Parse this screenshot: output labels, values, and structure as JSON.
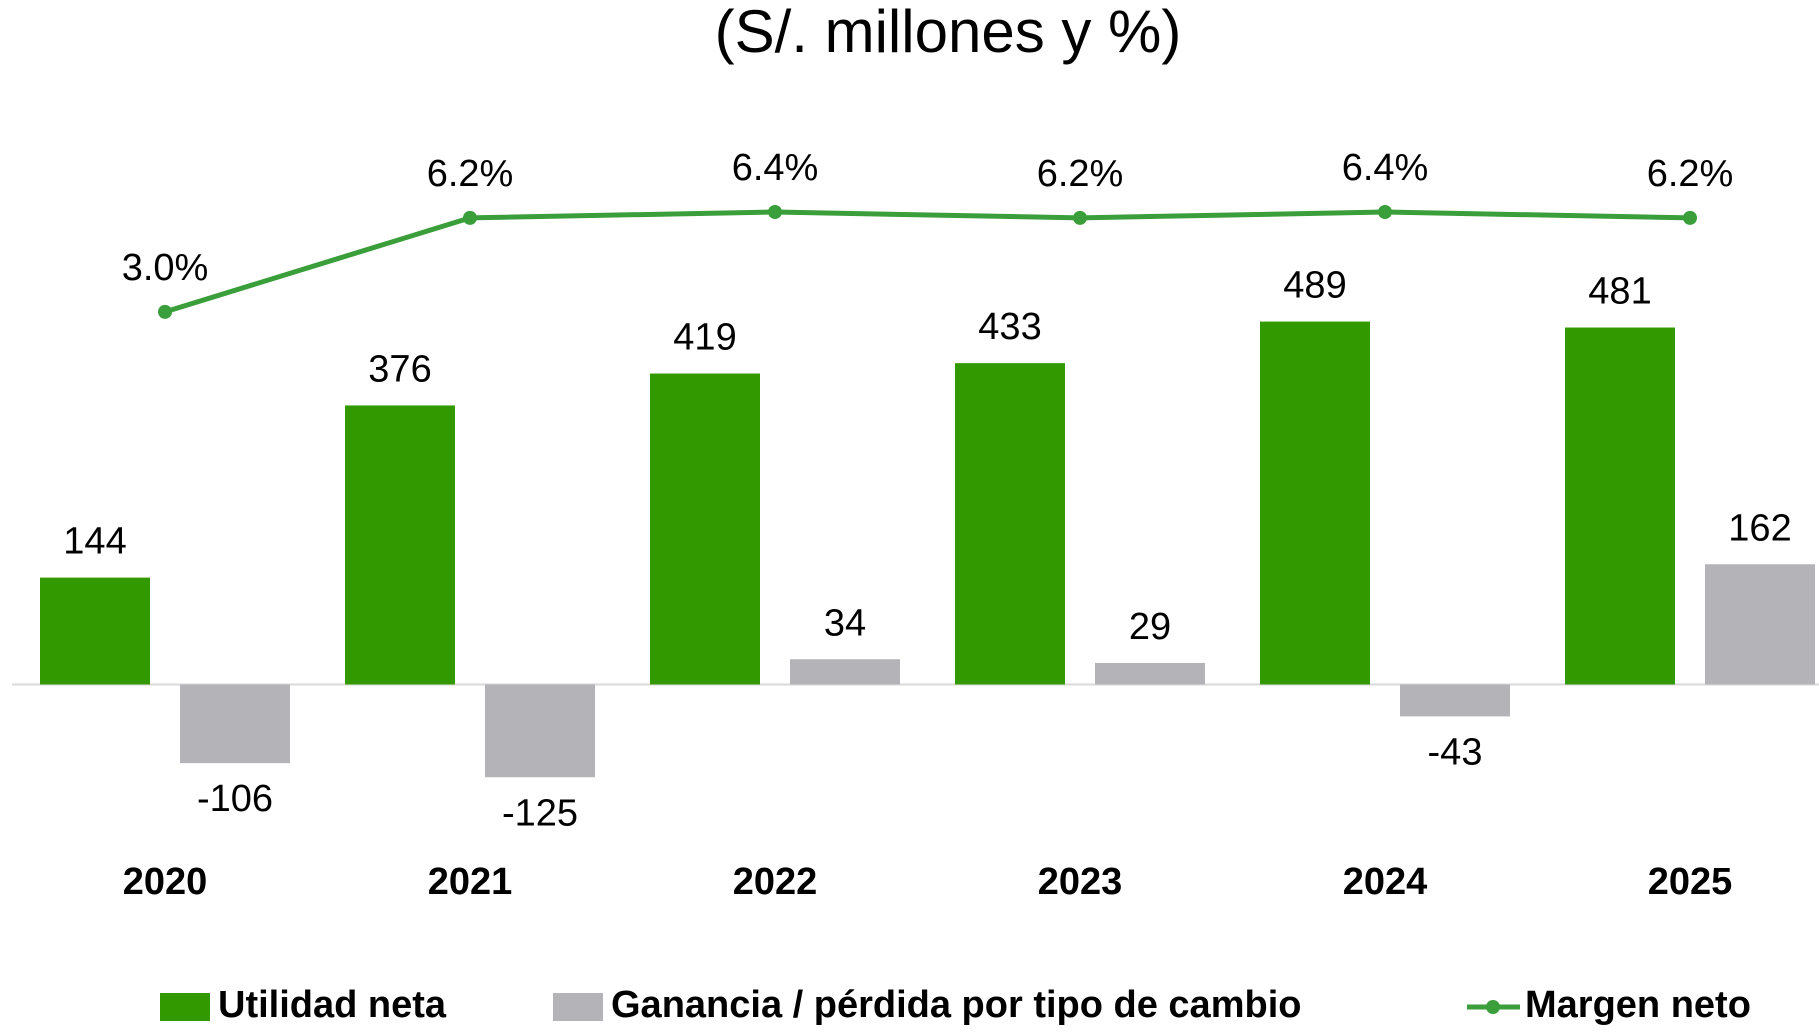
{
  "chart_data": {
    "type": "bar_line",
    "title": "(S/. millones y %)",
    "categories": [
      "2020",
      "2021",
      "2022",
      "2023",
      "2024",
      "2025"
    ],
    "series": [
      {
        "name": "Utilidad neta",
        "color": "#339900",
        "values": [
          144,
          376,
          419,
          433,
          489,
          481
        ]
      },
      {
        "name": "Ganancia / pérdida por tipo de cambio",
        "color": "#b3b3b8",
        "values": [
          -106,
          -125,
          34,
          29,
          -43,
          162
        ]
      },
      {
        "name": "Margen neto",
        "color": "#3a9e3a",
        "axis": "y2",
        "values": [
          3.0,
          6.2,
          6.4,
          6.2,
          6.4,
          6.2
        ],
        "value_labels": [
          "3.0%",
          "6.2%",
          "6.4%",
          "6.2%",
          "6.4%",
          "6.2%"
        ]
      }
    ],
    "ylim": [
      -250,
      700
    ],
    "y2lim": [
      -16,
      8
    ],
    "legend": "bottom"
  }
}
